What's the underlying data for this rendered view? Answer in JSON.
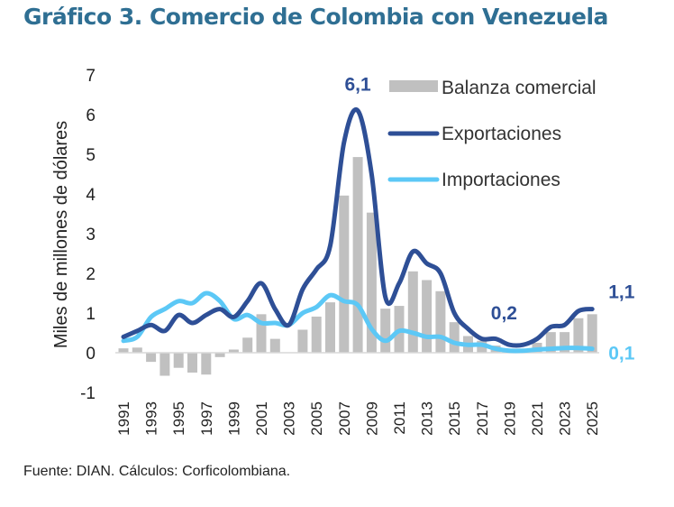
{
  "title": "Gráfico 3.  Comercio de Colombia con Venezuela",
  "source": "Fuente: DIAN. Cálculos: Corficolombiana.",
  "colors": {
    "title": "#2f6f93",
    "balanza": "#c0c0c0",
    "exportaciones": "#2e4f96",
    "importaciones": "#5cc8f6"
  },
  "chart_data": {
    "type": "bar+line",
    "title": "Gráfico 3.  Comercio de Colombia con Venezuela",
    "ylabel": "Miles de millones de dólares",
    "ylim": [
      -1,
      7
    ],
    "yticks": [
      "-1",
      "0",
      "1",
      "2",
      "3",
      "4",
      "5",
      "6",
      "7"
    ],
    "grid": false,
    "legend_position": "top-right",
    "categories": [
      1991,
      1992,
      1993,
      1994,
      1995,
      1996,
      1997,
      1998,
      1999,
      2000,
      2001,
      2002,
      2003,
      2004,
      2005,
      2006,
      2007,
      2008,
      2009,
      2010,
      2011,
      2012,
      2013,
      2014,
      2015,
      2016,
      2017,
      2018,
      2019,
      2020,
      2021,
      2022,
      2023,
      2024,
      2025
    ],
    "xtick_labels": [
      "1991",
      "1993",
      "1995",
      "1997",
      "1999",
      "2001",
      "2003",
      "2005",
      "2007",
      "2009",
      "2011",
      "2013",
      "2015",
      "2017",
      "2019",
      "2021",
      "2023",
      "2025"
    ],
    "series": [
      {
        "name": "Balanza comercial",
        "type": "bar",
        "values": [
          0.11,
          0.13,
          -0.23,
          -0.58,
          -0.38,
          -0.5,
          -0.55,
          -0.11,
          0.08,
          0.38,
          0.97,
          0.35,
          0.0,
          0.58,
          0.91,
          1.27,
          3.96,
          4.93,
          3.53,
          1.11,
          1.18,
          2.05,
          1.83,
          1.55,
          0.77,
          0.42,
          0.3,
          0.18,
          0.05,
          0.05,
          0.25,
          0.52,
          0.52,
          0.87,
          0.97
        ]
      },
      {
        "name": "Exportaciones",
        "type": "line",
        "values": [
          0.4,
          0.55,
          0.7,
          0.55,
          0.95,
          0.75,
          0.95,
          1.1,
          0.9,
          1.3,
          1.75,
          1.1,
          0.7,
          1.6,
          2.1,
          2.7,
          5.3,
          6.1,
          4.5,
          1.4,
          1.75,
          2.55,
          2.25,
          2.0,
          1.0,
          0.6,
          0.35,
          0.35,
          0.2,
          0.2,
          0.35,
          0.65,
          0.7,
          1.05,
          1.1
        ]
      },
      {
        "name": "Importaciones",
        "type": "line",
        "values": [
          0.3,
          0.4,
          0.9,
          1.1,
          1.3,
          1.25,
          1.5,
          1.3,
          0.85,
          0.95,
          0.75,
          0.75,
          0.7,
          1.0,
          1.15,
          1.45,
          1.3,
          1.2,
          0.6,
          0.3,
          0.55,
          0.5,
          0.4,
          0.4,
          0.25,
          0.2,
          0.2,
          0.1,
          0.05,
          0.05,
          0.08,
          0.1,
          0.12,
          0.12,
          0.1
        ]
      }
    ],
    "annotations": [
      {
        "text": "6,1",
        "series": "Exportaciones",
        "x": 2008
      },
      {
        "text": "0,2",
        "series": "Exportaciones",
        "x": 2019
      },
      {
        "text": "1,1",
        "series": "Exportaciones",
        "x": 2025
      },
      {
        "text": "0,1",
        "series": "Importaciones",
        "x": 2025
      }
    ]
  }
}
